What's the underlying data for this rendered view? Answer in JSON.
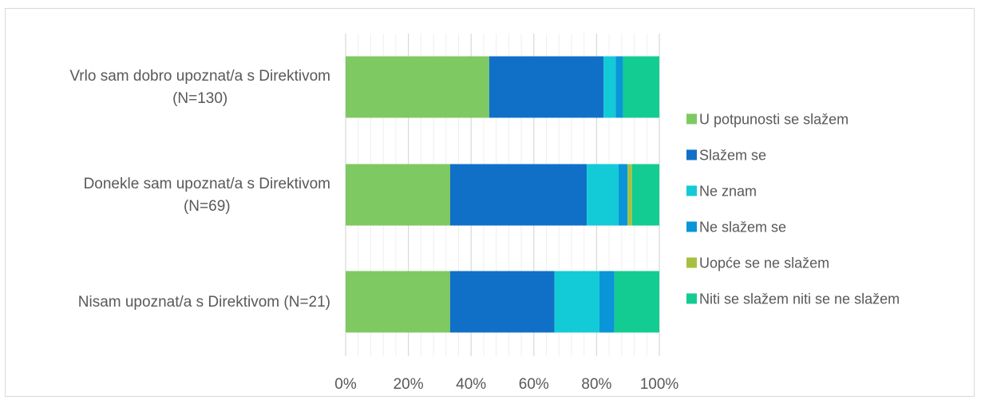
{
  "chart_data": {
    "type": "bar",
    "orientation": "horizontal",
    "stacked": "percent",
    "categories": [
      [
        "Vrlo sam dobro upoznat/a s Direktivom",
        "(N=130)"
      ],
      [
        "Donekle sam upoznat/a s Direktivom",
        "(N=69)"
      ],
      [
        "Nisam upoznat/a s Direktivom (N=21)"
      ]
    ],
    "series": [
      {
        "name": "U potpunosti se slažem",
        "color": "#7ec962",
        "values": [
          45.4,
          33.3,
          33.3
        ]
      },
      {
        "name": "Slažem se",
        "color": "#1070c8",
        "values": [
          36.2,
          43.5,
          33.3
        ]
      },
      {
        "name": "Ne znam",
        "color": "#12cbd6",
        "values": [
          3.8,
          10.1,
          14.3
        ]
      },
      {
        "name": "Ne slažem se",
        "color": "#0a95d8",
        "values": [
          2.3,
          2.9,
          4.8
        ]
      },
      {
        "name": "Uopće se ne slažem",
        "color": "#a8c040",
        "values": [
          0,
          1.4,
          0
        ]
      },
      {
        "name": "Niti se slažem niti se ne slažem",
        "color": "#13cc92",
        "values": [
          11.5,
          8.7,
          14.3
        ]
      }
    ],
    "xlim": [
      0,
      100
    ],
    "xticks": [
      "0%",
      "20%",
      "40%",
      "60%",
      "80%",
      "100%"
    ],
    "grid": true,
    "legend_position": "right",
    "title": "",
    "xlabel": "",
    "ylabel": ""
  }
}
